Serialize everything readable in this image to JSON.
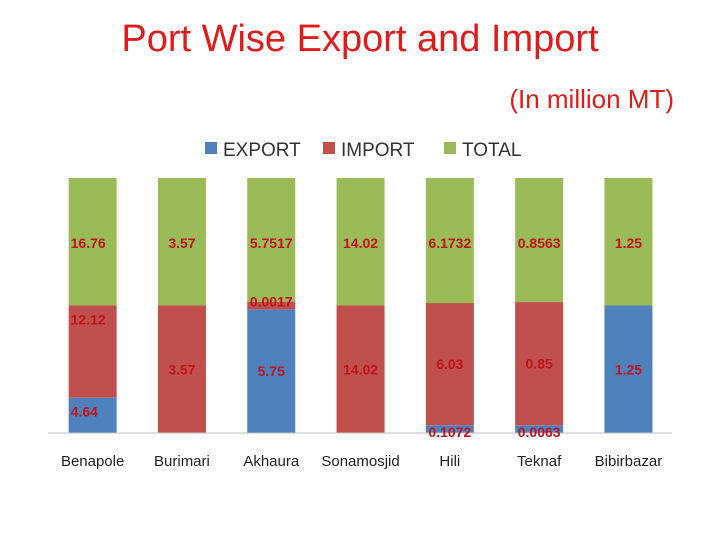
{
  "title": "Port Wise Export and Import",
  "subtitle": "(In million MT)",
  "chart_data": {
    "type": "bar",
    "stacked": true,
    "categories": [
      "Benapole",
      "Burimari",
      "Akhaura",
      "Sonamosjid",
      "Hili",
      "Teknaf",
      "Bibirbazar"
    ],
    "series": [
      {
        "name": "EXPORT",
        "color": "#4f81bd",
        "values": [
          4.64,
          0,
          5.75,
          0,
          0.1072,
          0.0063,
          1.25
        ],
        "labels": [
          "4.64",
          "",
          "5.75",
          "",
          "0.1072",
          "0.0063",
          "1.25"
        ]
      },
      {
        "name": "IMPORT",
        "color": "#c0504d",
        "values": [
          12.12,
          3.57,
          0.0017,
          14.02,
          6.03,
          0.85,
          0
        ],
        "labels": [
          "12.12",
          "3.57",
          "0.0017",
          "14.02",
          "6.03",
          "0.85",
          ""
        ]
      },
      {
        "name": "TOTAL",
        "color": "#9bbb59",
        "values": [
          16.76,
          3.57,
          5.7517,
          14.02,
          6.1732,
          0.8563,
          1.25
        ],
        "labels": [
          "16.76",
          "3.57",
          "5.7517",
          "14.02",
          "6.1732",
          "0.8563",
          "1.25"
        ]
      }
    ],
    "percent_scale": true,
    "legend": "top",
    "grid": false
  }
}
